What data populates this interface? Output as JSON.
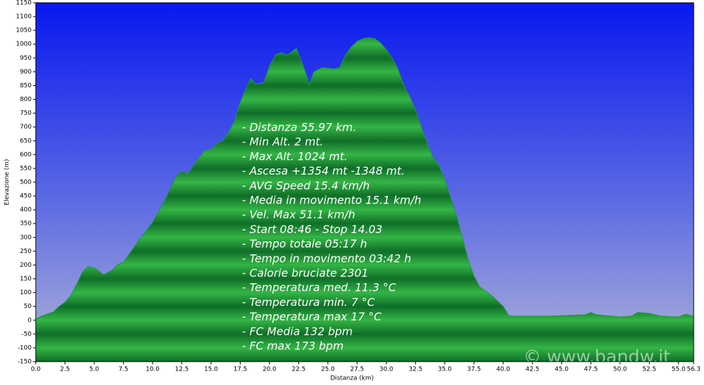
{
  "chart_data": {
    "type": "area",
    "x_label": "Distanza  (km)",
    "y_label": "Elevazione (m)",
    "watermark": "© www.bandw.it",
    "x": [
      0,
      0.5,
      1.5,
      2.0,
      2.5,
      3.0,
      3.5,
      4.0,
      4.5,
      5.0,
      5.5,
      5.8,
      6.5,
      7.0,
      7.5,
      8.0,
      9.0,
      10.0,
      11.0,
      12.0,
      12.5,
      13.0,
      13.5,
      14.0,
      14.5,
      15.0,
      15.5,
      16.0,
      16.5,
      17.0,
      17.5,
      18.0,
      18.4,
      18.8,
      19.5,
      20.0,
      20.5,
      21.0,
      21.5,
      22.0,
      22.3,
      22.8,
      23.2,
      23.4,
      23.8,
      24.5,
      25.5,
      26.0,
      26.5,
      27.0,
      27.5,
      28.0,
      28.5,
      29.0,
      29.5,
      30.0,
      30.5,
      31.0,
      31.5,
      32.0,
      32.5,
      33.0,
      33.5,
      34.0,
      34.5,
      35.0,
      35.5,
      36.0,
      36.5,
      37.0,
      37.5,
      38.0,
      39.0,
      40.0,
      40.5,
      41.0,
      44.0,
      47.0,
      47.5,
      48.0,
      50.0,
      51.0,
      51.5,
      52.5,
      53.5,
      55.0,
      55.6,
      56.3
    ],
    "values": [
      5,
      15,
      30,
      50,
      65,
      90,
      130,
      175,
      195,
      190,
      175,
      165,
      180,
      200,
      210,
      240,
      300,
      355,
      430,
      520,
      540,
      530,
      560,
      590,
      615,
      620,
      640,
      650,
      680,
      720,
      790,
      840,
      875,
      855,
      860,
      920,
      960,
      970,
      960,
      975,
      985,
      930,
      885,
      850,
      900,
      915,
      910,
      915,
      960,
      990,
      1010,
      1020,
      1024,
      1020,
      1005,
      980,
      950,
      910,
      850,
      810,
      760,
      700,
      640,
      590,
      560,
      510,
      445,
      380,
      300,
      220,
      160,
      120,
      90,
      50,
      15,
      15,
      15,
      20,
      28,
      20,
      12,
      15,
      28,
      25,
      15,
      12,
      22,
      15
    ],
    "color": "#1e9a38",
    "xlim": [
      0,
      56.3
    ],
    "ylim": [
      -150,
      1150
    ],
    "yticks": [
      -150,
      -100,
      -50,
      0,
      50,
      100,
      150,
      200,
      250,
      300,
      350,
      400,
      450,
      500,
      550,
      600,
      650,
      700,
      750,
      800,
      850,
      900,
      950,
      1000,
      1050,
      1100,
      1150
    ],
    "xticks": [
      {
        "value": 0,
        "label": "0.0"
      },
      {
        "value": 2.5,
        "label": "2.5"
      },
      {
        "value": 5,
        "label": "5.0"
      },
      {
        "value": 7.5,
        "label": "7.5"
      },
      {
        "value": 10,
        "label": "10.0"
      },
      {
        "value": 12.5,
        "label": "12.5"
      },
      {
        "value": 15,
        "label": "15.0"
      },
      {
        "value": 17.5,
        "label": "17.5"
      },
      {
        "value": 20,
        "label": "20.0"
      },
      {
        "value": 22.5,
        "label": "22.5"
      },
      {
        "value": 25,
        "label": "25.0"
      },
      {
        "value": 27.5,
        "label": "27.5"
      },
      {
        "value": 30,
        "label": "30.0"
      },
      {
        "value": 32.5,
        "label": "32.5"
      },
      {
        "value": 35,
        "label": "35.0"
      },
      {
        "value": 37.5,
        "label": "37.5"
      },
      {
        "value": 40,
        "label": "40.0"
      },
      {
        "value": 42.5,
        "label": "42.5"
      },
      {
        "value": 45,
        "label": "45.0"
      },
      {
        "value": 47.5,
        "label": "47.5"
      },
      {
        "value": 50,
        "label": "50.0"
      },
      {
        "value": 52.5,
        "label": "52.5"
      },
      {
        "value": 55,
        "label": "55.0"
      },
      {
        "value": 56.3,
        "label": "56.3"
      }
    ],
    "annotations": [
      "- Distanza 55.97 km.",
      "- Min Alt. 2 mt.",
      "- Max Alt. 1024 mt.",
      "- Ascesa +1354 mt -1348 mt.",
      "- AVG Speed 15.4 km/h",
      "- Media in movimento 15.1 km/h",
      "- Vel. Max 51.1 km/h",
      "- Start 08:46 - Stop 14.03",
      "- Tempo totale 05:17 h",
      "- Tempo in movimento 03:42 h",
      "- Calorie bruciate 2301",
      "- Temperatura med. 11.3 °C",
      "- Temperatura min. 7 °C",
      "- Temperatura max 17 °C",
      "- FC Media 132 bpm",
      "- FC max 173 bpm"
    ]
  }
}
